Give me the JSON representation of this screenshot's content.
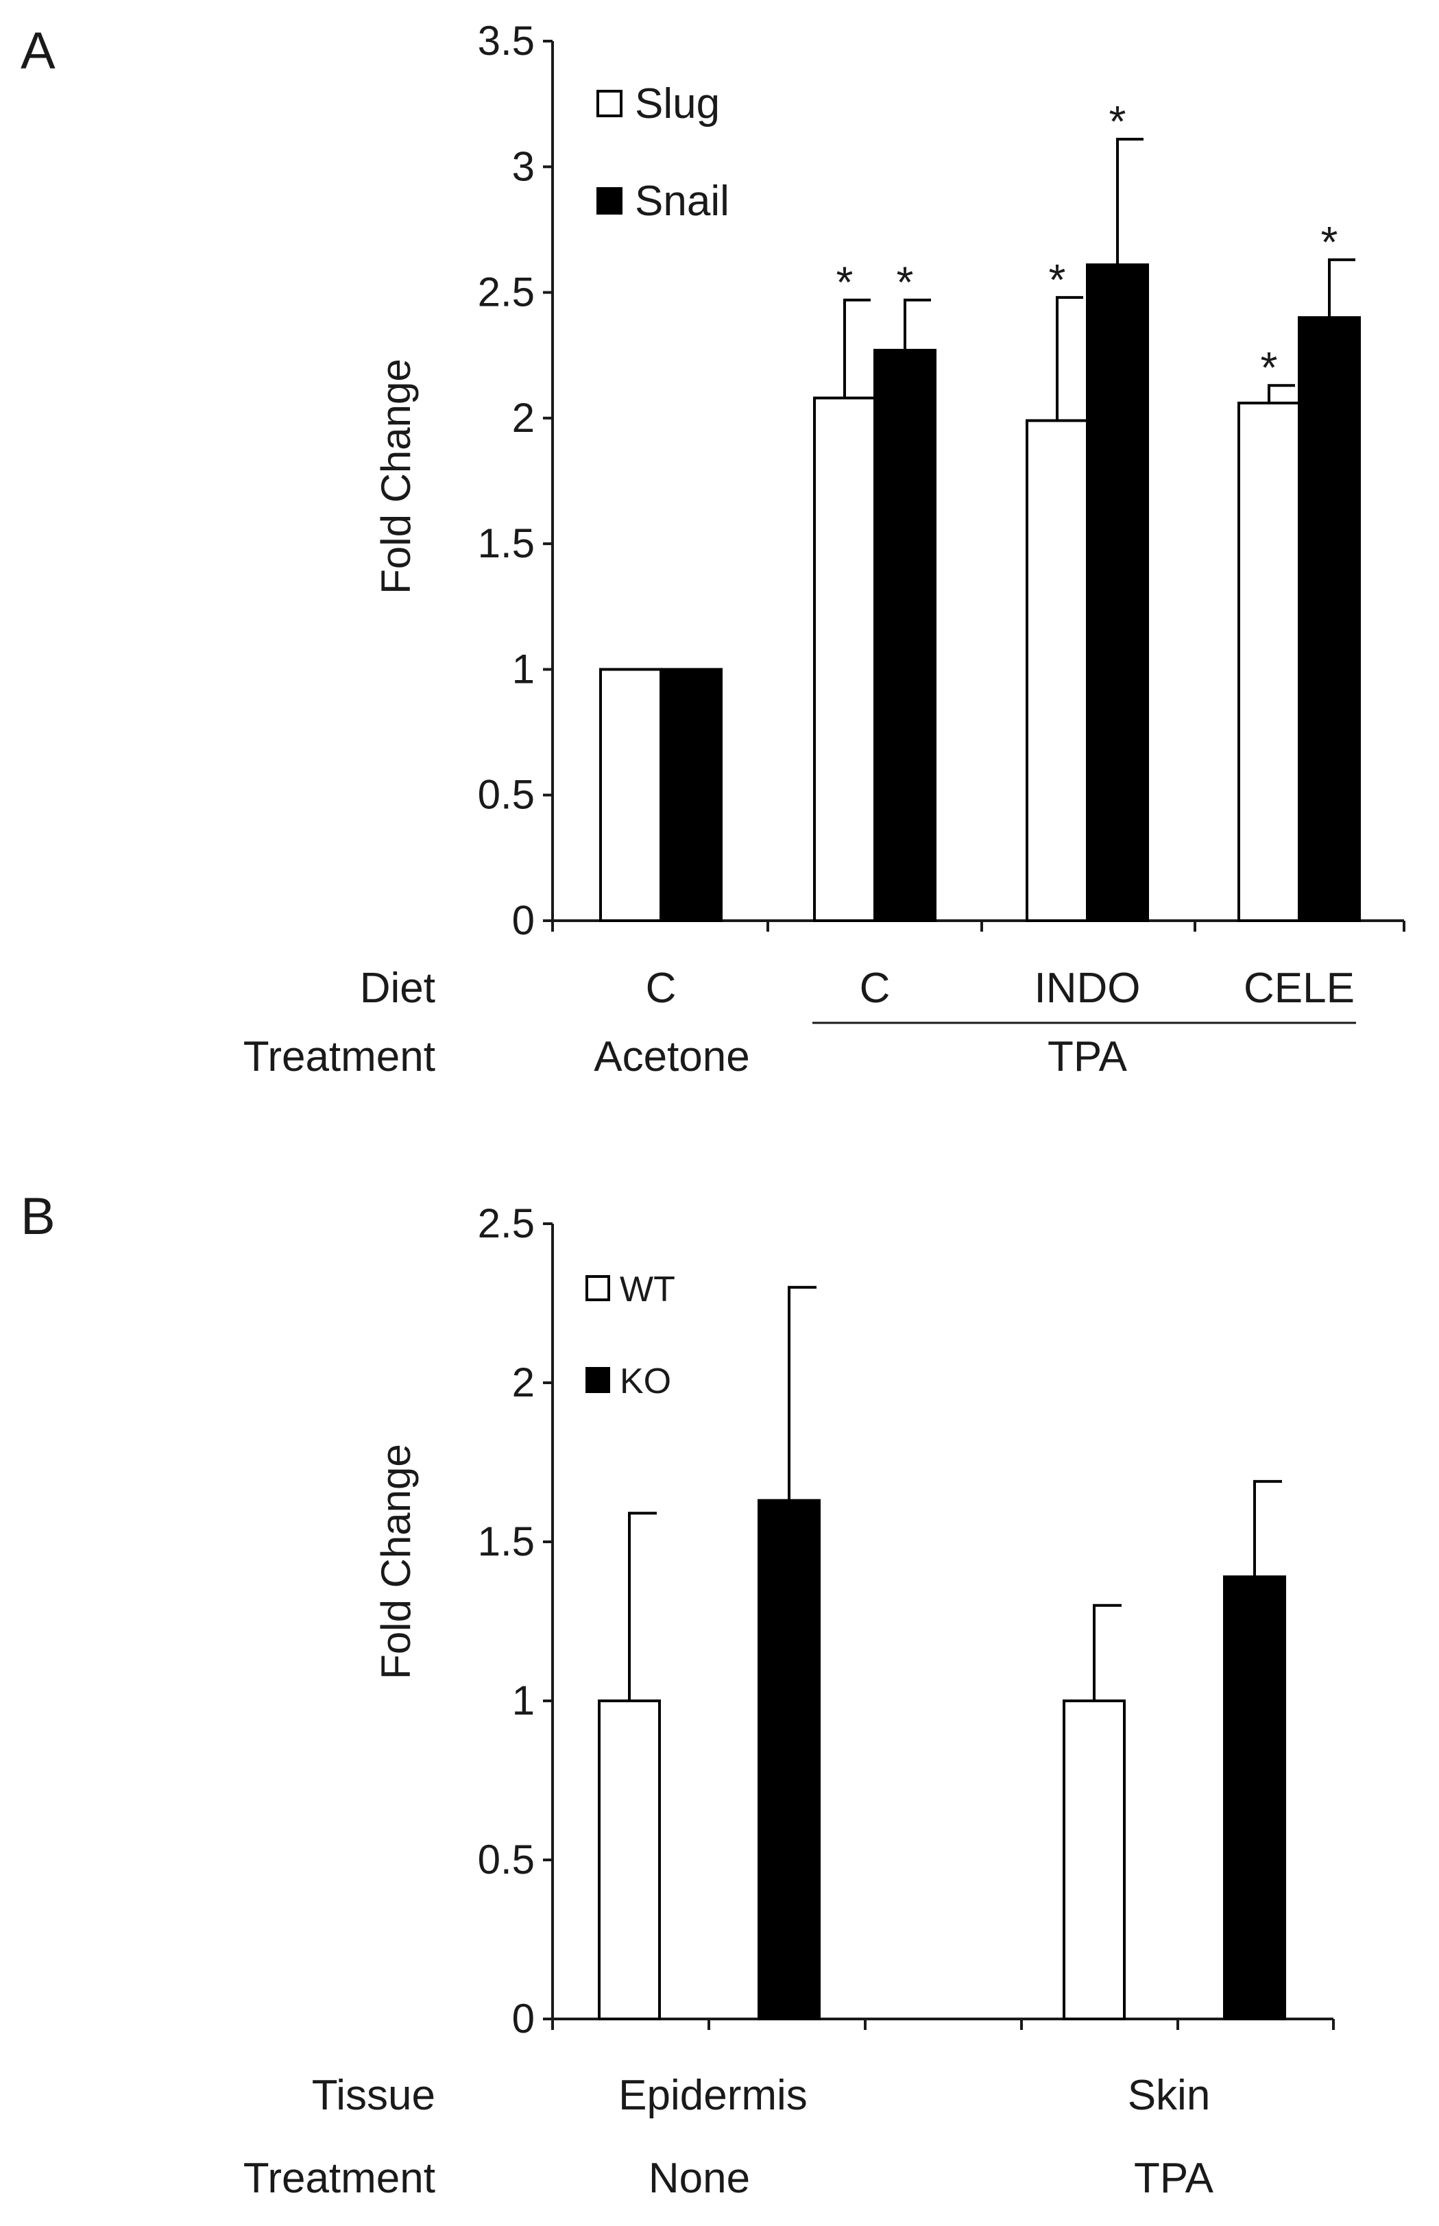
{
  "colors": {
    "series_open": "#ffffff",
    "series_filled": "#000000",
    "axis": "#1a1a1a"
  },
  "chart_data": [
    {
      "panel_label": "A",
      "type": "bar",
      "ylabel": "Fold Change",
      "ylim": [
        0,
        3.5
      ],
      "yticks": [
        "0",
        "0.5",
        "1",
        "1.5",
        "2",
        "2.5",
        "3",
        "3.5"
      ],
      "legend": {
        "position": "top-left",
        "entries": [
          "Slug",
          "Snail"
        ]
      },
      "series": [
        {
          "name": "Slug",
          "values": [
            1.0,
            2.08,
            1.99,
            2.06
          ],
          "errors": [
            0.0,
            0.39,
            0.49,
            0.07
          ],
          "significant": [
            false,
            true,
            true,
            true
          ]
        },
        {
          "name": "Snail",
          "values": [
            1.0,
            2.27,
            2.61,
            2.4
          ],
          "errors": [
            0.0,
            0.2,
            0.5,
            0.23
          ],
          "significant": [
            false,
            true,
            true,
            true
          ]
        }
      ],
      "row_labels": [
        "Diet",
        "Treatment"
      ],
      "diet_labels": [
        "C",
        "C",
        "INDO",
        "CELE"
      ],
      "treatment_labels": [
        "Acetone",
        "TPA"
      ],
      "significance_marker": "*"
    },
    {
      "panel_label": "B",
      "type": "bar",
      "ylabel": "Fold Change",
      "ylim": [
        0,
        2.5
      ],
      "yticks": [
        "0",
        "0.5",
        "1",
        "1.5",
        "2",
        "2.5"
      ],
      "legend": {
        "position": "top-left",
        "entries": [
          "WT",
          "KO"
        ]
      },
      "series": [
        {
          "name": "WT",
          "values": [
            1.0,
            1.0
          ],
          "errors": [
            0.59,
            0.3
          ]
        },
        {
          "name": "KO",
          "values": [
            1.63,
            1.39
          ],
          "errors": [
            0.67,
            0.3
          ]
        }
      ],
      "row_labels": [
        "Tissue",
        "Treatment"
      ],
      "tissue_labels": [
        "Epidermis",
        "Skin"
      ],
      "treatment_labels": [
        "None",
        "TPA"
      ]
    }
  ]
}
